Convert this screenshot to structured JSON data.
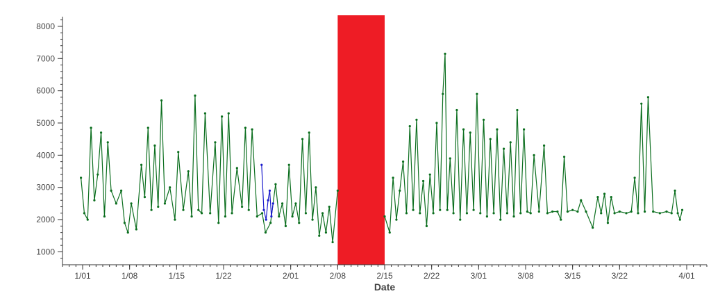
{
  "chart_data": {
    "type": "line",
    "title": "",
    "xlabel": "Date",
    "ylabel": "",
    "x_type": "date",
    "xlim": [
      "2024-12-29",
      "2025-04-04"
    ],
    "ylim": [
      600,
      8300
    ],
    "grid": false,
    "legend": "none",
    "x_ticks": [
      {
        "date": "2025-01-01",
        "label": "1/01"
      },
      {
        "date": "2025-01-08",
        "label": "1/08"
      },
      {
        "date": "2025-01-15",
        "label": "1/15"
      },
      {
        "date": "2025-01-22",
        "label": "1/22"
      },
      {
        "date": "2025-02-01",
        "label": "2/01"
      },
      {
        "date": "2025-02-08",
        "label": "2/08"
      },
      {
        "date": "2025-02-15",
        "label": "2/15"
      },
      {
        "date": "2025-02-22",
        "label": "2/22"
      },
      {
        "date": "2025-03-01",
        "label": "3/01"
      },
      {
        "date": "2025-03-08",
        "label": "3/08"
      },
      {
        "date": "2025-03-15",
        "label": "3/15"
      },
      {
        "date": "2025-03-22",
        "label": "3/22"
      },
      {
        "date": "2025-04-01",
        "label": "4/01"
      }
    ],
    "y_ticks": [
      1000,
      2000,
      3000,
      4000,
      5000,
      6000,
      7000,
      8000
    ],
    "highlight_band": {
      "start": "2025-02-08",
      "end": "2025-02-15",
      "color": "#ee1c25"
    },
    "series": [
      {
        "color": "#0b6e1e",
        "points": [
          [
            "2025-01-01",
            3300
          ],
          [
            "2025-01-01",
            2200
          ],
          [
            "2025-01-02",
            2000
          ],
          [
            "2025-01-02",
            4850
          ],
          [
            "2025-01-03",
            2600
          ],
          [
            "2025-01-03",
            3400
          ],
          [
            "2025-01-04",
            4700
          ],
          [
            "2025-01-04",
            2100
          ],
          [
            "2025-01-05",
            4400
          ],
          [
            "2025-01-05",
            2900
          ],
          [
            "2025-01-06",
            2500
          ],
          [
            "2025-01-07",
            2900
          ],
          [
            "2025-01-07",
            1900
          ],
          [
            "2025-01-08",
            1600
          ],
          [
            "2025-01-08",
            2500
          ],
          [
            "2025-01-09",
            1700
          ],
          [
            "2025-01-10",
            3700
          ],
          [
            "2025-01-10",
            2700
          ],
          [
            "2025-01-11",
            4850
          ],
          [
            "2025-01-11",
            2300
          ],
          [
            "2025-01-12",
            4300
          ],
          [
            "2025-01-12",
            2400
          ],
          [
            "2025-01-13",
            5700
          ],
          [
            "2025-01-13",
            2500
          ],
          [
            "2025-01-14",
            3000
          ],
          [
            "2025-01-15",
            2000
          ],
          [
            "2025-01-15",
            4100
          ],
          [
            "2025-01-16",
            2300
          ],
          [
            "2025-01-17",
            3500
          ],
          [
            "2025-01-17",
            2100
          ],
          [
            "2025-01-18",
            5850
          ],
          [
            "2025-01-18",
            2300
          ],
          [
            "2025-01-19",
            2200
          ],
          [
            "2025-01-19",
            5300
          ],
          [
            "2025-01-20",
            2200
          ],
          [
            "2025-01-21",
            4400
          ],
          [
            "2025-01-21",
            1900
          ],
          [
            "2025-01-22",
            5200
          ],
          [
            "2025-01-22",
            2100
          ],
          [
            "2025-01-23",
            5300
          ],
          [
            "2025-01-23",
            2200
          ],
          [
            "2025-01-24",
            3600
          ],
          [
            "2025-01-25",
            2400
          ],
          [
            "2025-01-25",
            4850
          ],
          [
            "2025-01-26",
            2300
          ],
          [
            "2025-01-26",
            4800
          ],
          [
            "2025-01-27",
            2100
          ],
          [
            "2025-01-28",
            2200
          ],
          [
            "2025-01-28",
            1600
          ],
          [
            "2025-01-29",
            1900
          ],
          [
            "2025-01-30",
            3100
          ],
          [
            "2025-01-30",
            2100
          ],
          [
            "2025-01-31",
            2500
          ],
          [
            "2025-01-31",
            1800
          ],
          [
            "2025-02-01",
            3700
          ],
          [
            "2025-02-01",
            2100
          ],
          [
            "2025-02-02",
            2500
          ],
          [
            "2025-02-02",
            1900
          ],
          [
            "2025-02-03",
            4500
          ],
          [
            "2025-02-03",
            2200
          ],
          [
            "2025-02-04",
            4700
          ],
          [
            "2025-02-04",
            2000
          ],
          [
            "2025-02-05",
            3000
          ],
          [
            "2025-02-05",
            1500
          ],
          [
            "2025-02-06",
            2200
          ],
          [
            "2025-02-06",
            1600
          ],
          [
            "2025-02-07",
            2400
          ],
          [
            "2025-02-07",
            1300
          ],
          [
            "2025-02-08",
            2900
          ],
          [
            "2025-02-15",
            2100
          ],
          [
            "2025-02-16",
            1600
          ],
          [
            "2025-02-16",
            3300
          ],
          [
            "2025-02-17",
            2000
          ],
          [
            "2025-02-17",
            2900
          ],
          [
            "2025-02-18",
            3800
          ],
          [
            "2025-02-18",
            2200
          ],
          [
            "2025-02-19",
            4900
          ],
          [
            "2025-02-19",
            2300
          ],
          [
            "2025-02-20",
            5100
          ],
          [
            "2025-02-20",
            2200
          ],
          [
            "2025-02-21",
            3200
          ],
          [
            "2025-02-21",
            1800
          ],
          [
            "2025-02-22",
            3400
          ],
          [
            "2025-02-22",
            2200
          ],
          [
            "2025-02-23",
            5000
          ],
          [
            "2025-02-23",
            2300
          ],
          [
            "2025-02-24",
            5900
          ],
          [
            "2025-02-24",
            7150
          ],
          [
            "2025-02-24",
            2300
          ],
          [
            "2025-02-25",
            3900
          ],
          [
            "2025-02-25",
            2200
          ],
          [
            "2025-02-26",
            5400
          ],
          [
            "2025-02-26",
            2000
          ],
          [
            "2025-02-27",
            4800
          ],
          [
            "2025-02-27",
            2200
          ],
          [
            "2025-02-28",
            4700
          ],
          [
            "2025-02-28",
            2300
          ],
          [
            "2025-03-01",
            5900
          ],
          [
            "2025-03-01",
            2200
          ],
          [
            "2025-03-02",
            5100
          ],
          [
            "2025-03-02",
            2100
          ],
          [
            "2025-03-03",
            4500
          ],
          [
            "2025-03-03",
            2200
          ],
          [
            "2025-03-04",
            4800
          ],
          [
            "2025-03-04",
            2000
          ],
          [
            "2025-03-05",
            4200
          ],
          [
            "2025-03-05",
            2200
          ],
          [
            "2025-03-06",
            4400
          ],
          [
            "2025-03-06",
            2100
          ],
          [
            "2025-03-07",
            5400
          ],
          [
            "2025-03-07",
            2200
          ],
          [
            "2025-03-08",
            4800
          ],
          [
            "2025-03-08",
            2250
          ],
          [
            "2025-03-09",
            2200
          ],
          [
            "2025-03-09",
            4000
          ],
          [
            "2025-03-10",
            2250
          ],
          [
            "2025-03-11",
            4300
          ],
          [
            "2025-03-11",
            2200
          ],
          [
            "2025-03-12",
            2250
          ],
          [
            "2025-03-13",
            2250
          ],
          [
            "2025-03-13",
            2000
          ],
          [
            "2025-03-14",
            3950
          ],
          [
            "2025-03-14",
            2250
          ],
          [
            "2025-03-15",
            2300
          ],
          [
            "2025-03-16",
            2250
          ],
          [
            "2025-03-16",
            2600
          ],
          [
            "2025-03-17",
            2250
          ],
          [
            "2025-03-18",
            1750
          ],
          [
            "2025-03-19",
            2700
          ],
          [
            "2025-03-19",
            2200
          ],
          [
            "2025-03-20",
            2800
          ],
          [
            "2025-03-20",
            1900
          ],
          [
            "2025-03-21",
            2700
          ],
          [
            "2025-03-21",
            2200
          ],
          [
            "2025-03-22",
            2250
          ],
          [
            "2025-03-23",
            2200
          ],
          [
            "2025-03-24",
            2250
          ],
          [
            "2025-03-24",
            3300
          ],
          [
            "2025-03-25",
            2200
          ],
          [
            "2025-03-25",
            5600
          ],
          [
            "2025-03-26",
            2250
          ],
          [
            "2025-03-26",
            5800
          ],
          [
            "2025-03-27",
            2250
          ],
          [
            "2025-03-28",
            2200
          ],
          [
            "2025-03-29",
            2250
          ],
          [
            "2025-03-30",
            2200
          ],
          [
            "2025-03-30",
            2900
          ],
          [
            "2025-03-31",
            2200
          ],
          [
            "2025-03-31",
            2000
          ],
          [
            "2025-03-31",
            2300
          ]
        ]
      },
      {
        "color": "#1a1acc",
        "points": [
          [
            "2025-01-28",
            3700
          ],
          [
            "2025-01-28",
            2300
          ],
          [
            "2025-01-28",
            2000
          ],
          [
            "2025-01-29",
            2600
          ],
          [
            "2025-01-29",
            2900
          ],
          [
            "2025-01-29",
            2100
          ],
          [
            "2025-01-29",
            2500
          ]
        ]
      }
    ]
  }
}
